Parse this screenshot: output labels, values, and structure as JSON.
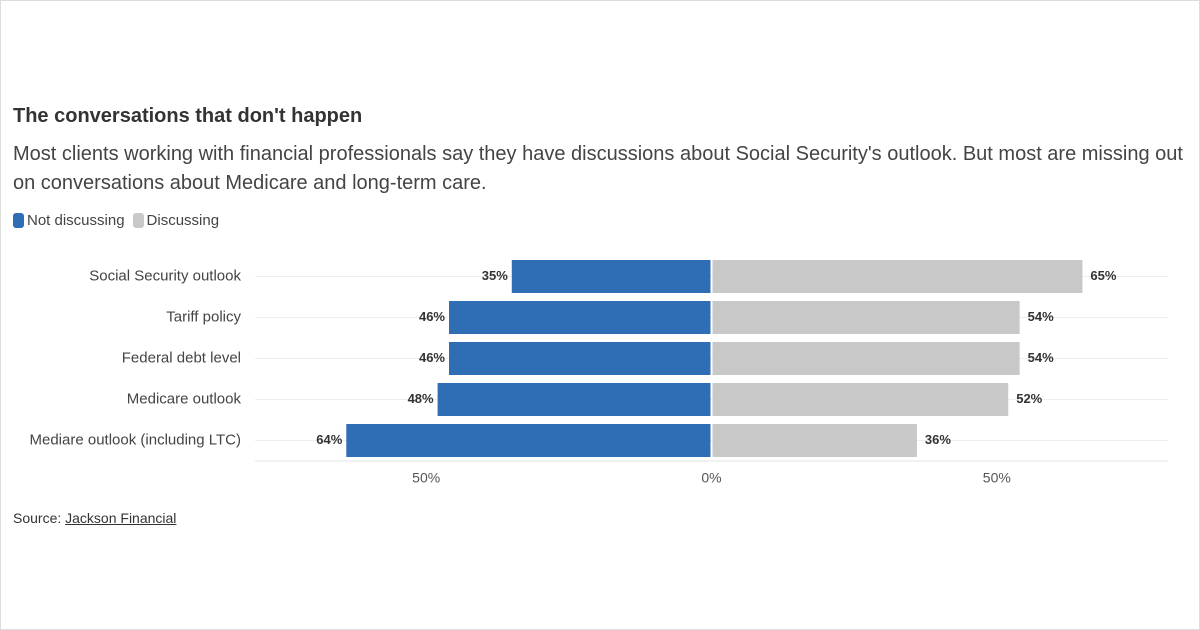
{
  "chart_data": {
    "type": "diverging_bar",
    "title": "The conversations that don't happen",
    "subtitle": "Most clients working with financial professionals say they have discussions about Social Security's outlook. But most are missing out on conversations about Medicare and long-term care.",
    "categories": [
      "Social Security outlook",
      "Tariff policy",
      "Federal debt level",
      "Medicare outlook",
      "Mediare outlook (including LTC)"
    ],
    "series": [
      {
        "name": "Not discussing",
        "color": "#2f6db5",
        "values": [
          35,
          46,
          46,
          48,
          64
        ],
        "value_labels": [
          "35%",
          "46%",
          "46%",
          "48%",
          "64%"
        ]
      },
      {
        "name": "Discussing",
        "color": "#c8c8c8",
        "values": [
          65,
          54,
          54,
          52,
          36
        ],
        "value_labels": [
          "65%",
          "54%",
          "54%",
          "52%",
          "36%"
        ]
      }
    ],
    "xlim": [
      -80,
      80
    ],
    "xticks": [
      {
        "value": -50,
        "label": "50%"
      },
      {
        "value": 0,
        "label": "0%"
      },
      {
        "value": 50,
        "label": "50%"
      }
    ],
    "source_label": "Source:",
    "source": "Jackson Financial"
  }
}
